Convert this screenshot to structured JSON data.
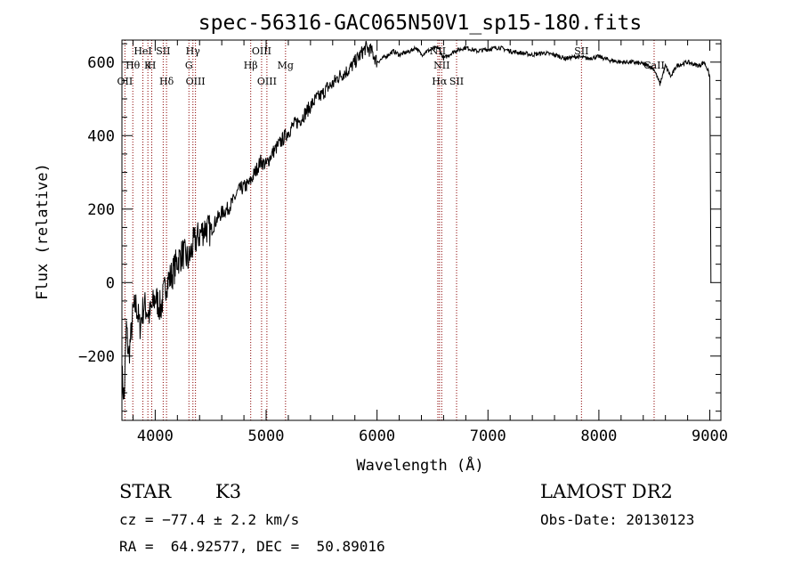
{
  "chart_data": {
    "type": "line",
    "title": "spec-56316-GAC065N50V1_sp15-180.fits",
    "xlabel": "Wavelength (Å)",
    "ylabel": "Flux (relative)",
    "xlim": [
      3700,
      9100
    ],
    "ylim": [
      -375,
      660
    ],
    "xticks": [
      4000,
      5000,
      6000,
      7000,
      8000,
      9000
    ],
    "xtick_labels": [
      "4000",
      "5000",
      "6000",
      "7000",
      "8000",
      "9000"
    ],
    "yticks": [
      -200,
      0,
      200,
      400,
      600
    ],
    "ytick_labels": [
      "−200",
      "0",
      "200",
      "400",
      "600"
    ],
    "grid": false,
    "series": [
      {
        "x": [
          3700,
          3720,
          3740,
          3760,
          3780,
          3800,
          3830,
          3860,
          3900,
          3950,
          4000,
          4050,
          4100,
          4150,
          4200,
          4250,
          4300,
          4350,
          4400,
          4450,
          4500,
          4550,
          4600,
          4650,
          4700,
          4750,
          4800,
          4850,
          4900,
          4950,
          5000,
          5050,
          5100,
          5150,
          5200,
          5250,
          5300,
          5350,
          5400,
          5450,
          5500,
          5550,
          5600,
          5650,
          5700,
          5750,
          5800,
          5850,
          5900,
          5950,
          6000,
          6050,
          6100,
          6150,
          6200,
          6250,
          6300,
          6350,
          6400,
          6450,
          6500,
          6550,
          6600,
          6650,
          6700,
          6750,
          6800,
          6900,
          7000,
          7100,
          7200,
          7300,
          7400,
          7500,
          7600,
          7700,
          7800,
          7900,
          8000,
          8100,
          8200,
          8300,
          8400,
          8450,
          8500,
          8550,
          8600,
          8650,
          8700,
          8800,
          8900,
          8950,
          8980,
          9000,
          9010
        ],
        "y": [
          -250,
          -320,
          -120,
          -200,
          -150,
          -80,
          -60,
          -120,
          -60,
          -90,
          -40,
          -70,
          0,
          20,
          60,
          80,
          60,
          110,
          130,
          150,
          140,
          170,
          190,
          200,
          220,
          250,
          260,
          270,
          300,
          330,
          320,
          350,
          370,
          390,
          410,
          430,
          440,
          460,
          480,
          500,
          510,
          530,
          540,
          560,
          570,
          580,
          600,
          620,
          640,
          630,
          600,
          610,
          620,
          630,
          620,
          625,
          630,
          640,
          620,
          630,
          635,
          640,
          610,
          620,
          630,
          635,
          640,
          630,
          635,
          640,
          630,
          625,
          620,
          625,
          620,
          610,
          615,
          610,
          615,
          605,
          600,
          600,
          595,
          590,
          580,
          540,
          590,
          560,
          590,
          600,
          590,
          600,
          580,
          560,
          0
        ]
      }
    ],
    "lines": [
      {
        "x": 3727,
        "label": "OII",
        "row": 2
      },
      {
        "x": 3798,
        "label": "Hθ",
        "row": 1
      },
      {
        "x": 3889,
        "label": "HeI",
        "row": 0
      },
      {
        "x": 3934,
        "label": "K",
        "row": 1
      },
      {
        "x": 3969,
        "label": "H",
        "row": 1
      },
      {
        "x": 4072,
        "label": "SII",
        "row": 0
      },
      {
        "x": 4102,
        "label": "Hδ",
        "row": 2
      },
      {
        "x": 4304,
        "label": "G",
        "row": 1
      },
      {
        "x": 4340,
        "label": "Hγ",
        "row": 0
      },
      {
        "x": 4363,
        "label": "OIII",
        "row": 2
      },
      {
        "x": 4861,
        "label": "Hβ",
        "row": 1
      },
      {
        "x": 4959,
        "label": "OIII",
        "row": 0
      },
      {
        "x": 5007,
        "label": "OIII",
        "row": 2
      },
      {
        "x": 5175,
        "label": "Mg",
        "row": 1
      },
      {
        "x": 6548,
        "label": "NII",
        "row": 0
      },
      {
        "x": 6563,
        "label": "Hα",
        "row": 2
      },
      {
        "x": 6583,
        "label": "NII",
        "row": 1
      },
      {
        "x": 6717,
        "label": "SII",
        "row": 2
      },
      {
        "x": 7843,
        "label": "SII",
        "row": 0
      },
      {
        "x": 8498,
        "label": "CaII",
        "row": 1
      }
    ],
    "line_color": "#8b0000"
  },
  "footer": {
    "object_class": "STAR",
    "subclass": "K3",
    "survey": "LAMOST DR2",
    "redshift": "cz = −77.4 ± 2.2 km/s",
    "obs_date": "Obs-Date: 20130123",
    "coords": "RA =  64.92577, DEC =  50.89016"
  }
}
